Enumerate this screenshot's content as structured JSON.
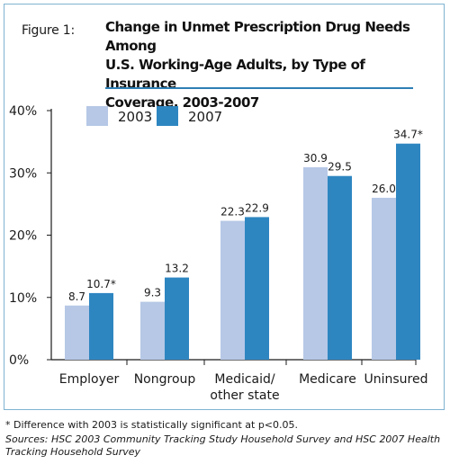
{
  "figure_label": "Figure 1:",
  "title_lines": [
    "Change in Unmet Prescription Drug Needs Among",
    "U.S. Working-Age Adults, by Type of Insurance",
    "Coverage, 2003-2007"
  ],
  "footnote": "* Difference with 2003 is statistically significant at p<0.05.",
  "sources": "Sources: HSC 2003 Community Tracking Study Household Survey and HSC 2007 Health Tracking Household Survey",
  "colors": {
    "2003": "#b6c8e6",
    "2007": "#2e86c1",
    "rule": "#2d7fb5",
    "frame": "#7fb3d1"
  },
  "chart_data": {
    "type": "bar",
    "categories": [
      "Employer",
      "Nongroup",
      "Medicaid/ other state",
      "Medicare",
      "Uninsured"
    ],
    "category_lines": [
      [
        "Employer"
      ],
      [
        "Nongroup"
      ],
      [
        "Medicaid/",
        "other state"
      ],
      [
        "Medicare"
      ],
      [
        "Uninsured"
      ]
    ],
    "series": [
      {
        "name": "2003",
        "values": [
          8.7,
          9.3,
          22.3,
          30.9,
          26.0
        ],
        "labels": [
          "8.7",
          "9.3",
          "22.3",
          "30.9",
          "26.0"
        ]
      },
      {
        "name": "2007",
        "values": [
          10.7,
          13.2,
          22.9,
          29.5,
          34.7
        ],
        "labels": [
          "10.7*",
          "13.2",
          "22.9",
          "29.5",
          "34.7*"
        ]
      }
    ],
    "ylim": [
      0,
      40
    ],
    "yticks": [
      {
        "value": 0,
        "label": "0%"
      },
      {
        "value": 10,
        "label": "10%"
      },
      {
        "value": 20,
        "label": "20%"
      },
      {
        "value": 30,
        "label": "30%"
      },
      {
        "value": 40,
        "label": "40%"
      }
    ],
    "legend_position": "top-left",
    "grid": false
  }
}
